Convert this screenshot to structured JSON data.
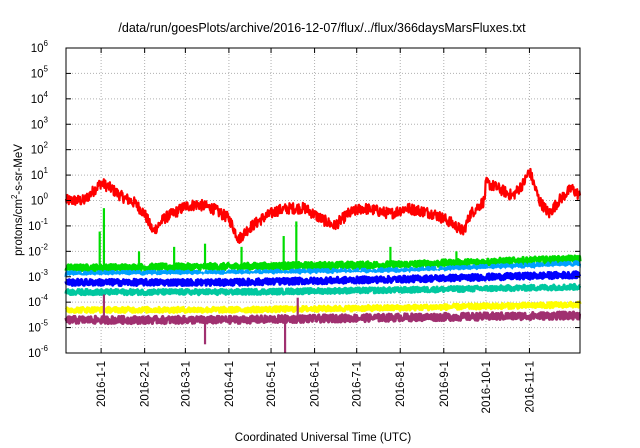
{
  "chart_data": {
    "type": "line",
    "title": "/data/run/goesPlots/archive/2016-12-07/flux/../flux/366daysMarsFluxes.txt",
    "xlabel": "Coordinated Universal Time (UTC)",
    "ylabel_main": "protons/cm",
    "ylabel_sup": "2",
    "ylabel_rest": "-s-sr-MeV",
    "x_range": [
      "2015-12-07",
      "2016-12-07"
    ],
    "y_scale": "log",
    "ylim": [
      1e-06,
      1000000.0
    ],
    "grid": true,
    "x_ticks": [
      {
        "date": "2016-01-01",
        "label": "2016-1-1"
      },
      {
        "date": "2016-02-01",
        "label": "2016-2-1"
      },
      {
        "date": "2016-03-01",
        "label": "2016-3-1"
      },
      {
        "date": "2016-04-01",
        "label": "2016-4-1"
      },
      {
        "date": "2016-05-01",
        "label": "2016-5-1"
      },
      {
        "date": "2016-06-01",
        "label": "2016-6-1"
      },
      {
        "date": "2016-07-01",
        "label": "2016-7-1"
      },
      {
        "date": "2016-08-01",
        "label": "2016-8-1"
      },
      {
        "date": "2016-09-01",
        "label": "2016-9-1"
      },
      {
        "date": "2016-10-01",
        "label": "2016-10-1"
      },
      {
        "date": "2016-11-01",
        "label": "2016-11-1"
      }
    ],
    "y_ticks": [
      {
        "base": "10",
        "exp": "-6",
        "value": 1e-06
      },
      {
        "base": "10",
        "exp": "-5",
        "value": 1e-05
      },
      {
        "base": "10",
        "exp": "-4",
        "value": 0.0001
      },
      {
        "base": "10",
        "exp": "-3",
        "value": 0.001
      },
      {
        "base": "10",
        "exp": "-2",
        "value": 0.01
      },
      {
        "base": "10",
        "exp": "-1",
        "value": 0.1
      },
      {
        "base": "10",
        "exp": "0",
        "value": 1
      },
      {
        "base": "10",
        "exp": "1",
        "value": 10
      },
      {
        "base": "10",
        "exp": "2",
        "value": 100
      },
      {
        "base": "10",
        "exp": "3",
        "value": 1000
      },
      {
        "base": "10",
        "exp": "4",
        "value": 10000
      },
      {
        "base": "10",
        "exp": "5",
        "value": 100000
      },
      {
        "base": "10",
        "exp": "6",
        "value": 1000000
      }
    ],
    "series": [
      {
        "color": "#ff0000",
        "noise_decades": 0.22,
        "points": [
          [
            "2015-12-07",
            1.0
          ],
          [
            "2015-12-20",
            1.0
          ],
          [
            "2016-01-01",
            5
          ],
          [
            "2016-01-08",
            3
          ],
          [
            "2016-01-15",
            1.5
          ],
          [
            "2016-01-25",
            0.8
          ],
          [
            "2016-02-01",
            0.3
          ],
          [
            "2016-02-07",
            0.06
          ],
          [
            "2016-02-15",
            0.2
          ],
          [
            "2016-02-25",
            0.4
          ],
          [
            "2016-03-01",
            0.6
          ],
          [
            "2016-03-10",
            0.7
          ],
          [
            "2016-03-20",
            0.5
          ],
          [
            "2016-04-01",
            0.2
          ],
          [
            "2016-04-08",
            0.03
          ],
          [
            "2016-04-15",
            0.08
          ],
          [
            "2016-04-25",
            0.2
          ],
          [
            "2016-05-05",
            0.4
          ],
          [
            "2016-05-15",
            0.5
          ],
          [
            "2016-05-25",
            0.5
          ],
          [
            "2016-06-05",
            0.2
          ],
          [
            "2016-06-15",
            0.1
          ],
          [
            "2016-06-25",
            0.3
          ],
          [
            "2016-07-05",
            0.5
          ],
          [
            "2016-07-15",
            0.4
          ],
          [
            "2016-07-25",
            0.3
          ],
          [
            "2016-08-05",
            0.5
          ],
          [
            "2016-08-15",
            0.4
          ],
          [
            "2016-08-25",
            0.3
          ],
          [
            "2016-09-05",
            0.15
          ],
          [
            "2016-09-15",
            0.06
          ],
          [
            "2016-09-20",
            0.3
          ],
          [
            "2016-09-30",
            1.0
          ],
          [
            "2016-10-01",
            5
          ],
          [
            "2016-10-10",
            3
          ],
          [
            "2016-10-20",
            1.5
          ],
          [
            "2016-10-28",
            5
          ],
          [
            "2016-11-01",
            15
          ],
          [
            "2016-11-08",
            1.0
          ],
          [
            "2016-11-15",
            0.3
          ],
          [
            "2016-11-22",
            1.0
          ],
          [
            "2016-12-01",
            3
          ],
          [
            "2016-12-07",
            1.5
          ]
        ]
      },
      {
        "color": "#00dd00",
        "noise_decades": 0.13,
        "points": [
          [
            "2015-12-07",
            0.0022
          ],
          [
            "2016-04-01",
            0.0025
          ],
          [
            "2016-08-01",
            0.003
          ],
          [
            "2016-12-07",
            0.005
          ]
        ],
        "spikes": [
          [
            "2015-12-31",
            0.06
          ],
          [
            "2016-01-03",
            0.5
          ],
          [
            "2016-01-28",
            0.01
          ],
          [
            "2016-02-22",
            0.015
          ],
          [
            "2016-03-15",
            0.02
          ],
          [
            "2016-04-10",
            0.015
          ],
          [
            "2016-05-10",
            0.04
          ],
          [
            "2016-05-19",
            0.15
          ],
          [
            "2016-07-25",
            0.015
          ],
          [
            "2016-09-10",
            0.01
          ]
        ]
      },
      {
        "color": "#00a0ff",
        "noise_decades": 0.12,
        "points": [
          [
            "2015-12-07",
            0.0012
          ],
          [
            "2016-04-01",
            0.0013
          ],
          [
            "2016-08-01",
            0.0016
          ],
          [
            "2016-12-07",
            0.003
          ]
        ]
      },
      {
        "color": "#ffffff",
        "noise_decades": 0.07,
        "points": [
          [
            "2015-12-07",
            0.0009
          ],
          [
            "2016-04-01",
            0.001
          ],
          [
            "2016-08-01",
            0.0012
          ],
          [
            "2016-12-07",
            0.0022
          ]
        ]
      },
      {
        "color": "#0000ff",
        "noise_decades": 0.12,
        "points": [
          [
            "2015-12-07",
            0.0006
          ],
          [
            "2016-04-01",
            0.0006
          ],
          [
            "2016-08-01",
            0.0008
          ],
          [
            "2016-12-07",
            0.0012
          ]
        ]
      },
      {
        "color": "#00c8a0",
        "noise_decades": 0.1,
        "points": [
          [
            "2015-12-07",
            0.00025
          ],
          [
            "2016-04-01",
            0.00025
          ],
          [
            "2016-08-01",
            0.0003
          ],
          [
            "2016-12-07",
            0.0004
          ]
        ]
      },
      {
        "color": "#ffff00",
        "noise_decades": 0.1,
        "points": [
          [
            "2015-12-07",
            5e-05
          ],
          [
            "2016-04-01",
            5e-05
          ],
          [
            "2016-08-01",
            6e-05
          ],
          [
            "2016-12-07",
            8e-05
          ]
        ]
      },
      {
        "color": "#a03070",
        "noise_decades": 0.14,
        "points": [
          [
            "2015-12-07",
            2e-05
          ],
          [
            "2016-04-01",
            2e-05
          ],
          [
            "2016-08-01",
            2.5e-05
          ],
          [
            "2016-12-07",
            3e-05
          ]
        ],
        "spikes": [
          [
            "2016-01-03",
            0.0002
          ],
          [
            "2016-05-20",
            0.00015
          ]
        ],
        "dips": [
          [
            "2016-03-15",
            2.2e-06
          ],
          [
            "2016-05-11",
            6e-07
          ]
        ]
      }
    ]
  }
}
